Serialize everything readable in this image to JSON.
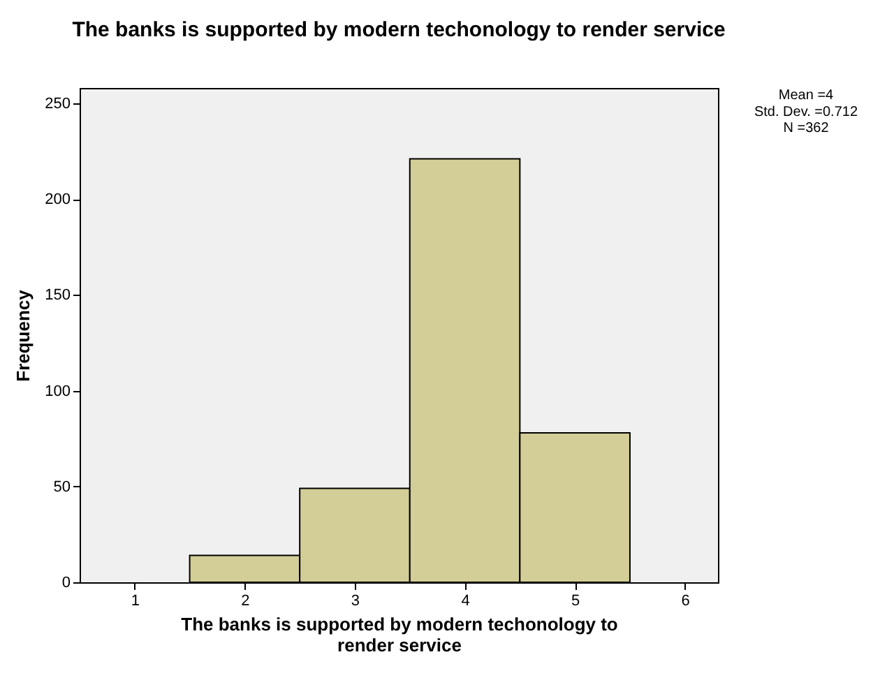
{
  "chart_data": {
    "type": "histogram",
    "title": "The banks is supported by modern techonology to render service",
    "xlabel": "The banks is supported by modern techonology to render service",
    "ylabel": "Frequency",
    "bins": [
      1.5,
      2.5,
      3.5,
      4.5,
      5.5
    ],
    "values": [
      14,
      49,
      221,
      78
    ],
    "color": "#d3ce97",
    "xlim": [
      0.5,
      6.3
    ],
    "xticks": [
      1,
      2,
      3,
      4,
      5,
      6
    ],
    "ylim": [
      0,
      258
    ],
    "yticks": [
      0,
      50,
      100,
      150,
      200,
      250
    ],
    "grid": false,
    "annotations": [
      "Mean =4",
      "Std. Dev. =0.712",
      "N =362"
    ]
  }
}
